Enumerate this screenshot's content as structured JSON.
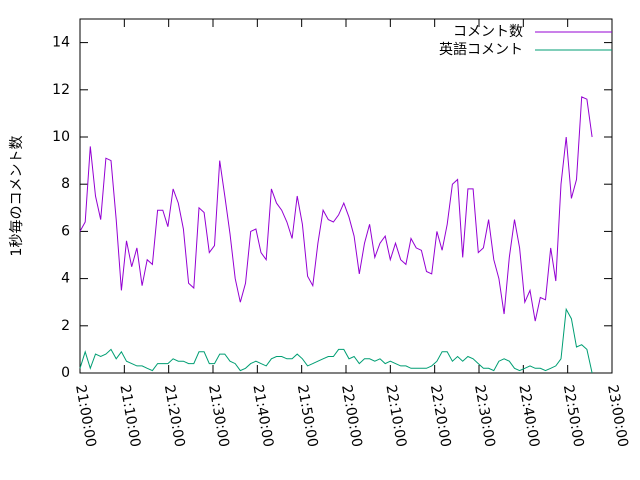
{
  "chart_data": {
    "type": "line",
    "ylabel": "1秒毎のコメント数",
    "x": [
      "21:00:00",
      "21:01:10",
      "21:02:20",
      "21:03:30",
      "21:04:40",
      "21:05:50",
      "21:07:00",
      "21:08:10",
      "21:09:20",
      "21:10:30",
      "21:11:40",
      "21:12:50",
      "21:14:00",
      "21:15:10",
      "21:16:20",
      "21:17:30",
      "21:18:40",
      "21:19:50",
      "21:21:00",
      "21:22:10",
      "21:23:20",
      "21:24:30",
      "21:25:40",
      "21:26:50",
      "21:28:00",
      "21:29:10",
      "21:30:20",
      "21:31:30",
      "21:32:40",
      "21:33:50",
      "21:35:00",
      "21:36:10",
      "21:37:20",
      "21:38:30",
      "21:39:40",
      "21:40:50",
      "21:42:00",
      "21:43:10",
      "21:44:20",
      "21:45:30",
      "21:46:40",
      "21:47:50",
      "21:49:00",
      "21:50:10",
      "21:51:20",
      "21:52:30",
      "21:53:40",
      "21:54:50",
      "21:56:00",
      "21:57:10",
      "21:58:20",
      "21:59:30",
      "22:00:40",
      "22:01:50",
      "22:03:00",
      "22:04:10",
      "22:05:20",
      "22:06:30",
      "22:07:40",
      "22:08:50",
      "22:10:00",
      "22:11:10",
      "22:12:20",
      "22:13:30",
      "22:14:40",
      "22:15:50",
      "22:17:00",
      "22:18:10",
      "22:19:20",
      "22:20:30",
      "22:21:40",
      "22:22:50",
      "22:24:00",
      "22:25:10",
      "22:26:20",
      "22:27:30",
      "22:28:40",
      "22:29:50",
      "22:31:00",
      "22:32:10",
      "22:33:20",
      "22:34:30",
      "22:35:40",
      "22:36:50",
      "22:38:00",
      "22:39:10",
      "22:40:20",
      "22:41:30",
      "22:42:40",
      "22:43:50",
      "22:45:00",
      "22:46:10",
      "22:47:20",
      "22:48:30",
      "22:49:40",
      "22:50:50",
      "22:52:00",
      "22:53:10",
      "22:54:20",
      "22:55:30"
    ],
    "series": [
      {
        "name": "コメント数",
        "color": "#9400d3",
        "values": [
          6.0,
          6.4,
          9.6,
          7.5,
          6.5,
          9.1,
          9.0,
          6.5,
          3.5,
          5.6,
          4.5,
          5.3,
          3.7,
          4.8,
          4.6,
          6.9,
          6.9,
          6.2,
          7.8,
          7.2,
          6.1,
          3.8,
          3.6,
          7.0,
          6.8,
          5.1,
          5.4,
          9.0,
          7.5,
          5.9,
          4.0,
          3.0,
          3.8,
          6.0,
          6.1,
          5.1,
          4.8,
          7.8,
          7.2,
          6.9,
          6.4,
          5.7,
          7.5,
          6.3,
          4.1,
          3.7,
          5.5,
          6.9,
          6.5,
          6.4,
          6.7,
          7.2,
          6.6,
          5.8,
          4.2,
          5.5,
          6.3,
          4.9,
          5.5,
          5.8,
          4.8,
          5.5,
          4.8,
          4.6,
          5.7,
          5.3,
          5.2,
          4.3,
          4.2,
          6.0,
          5.2,
          6.3,
          8.0,
          8.2,
          4.9,
          7.8,
          7.8,
          5.1,
          5.3,
          6.5,
          4.8,
          4.0,
          2.5,
          4.9,
          6.5,
          5.3,
          3.0,
          3.5,
          2.2,
          3.2,
          3.1,
          5.3,
          3.9,
          8.0,
          10.0,
          7.4,
          8.2,
          11.7,
          11.6,
          10.0
        ]
      },
      {
        "name": "英語コメント",
        "color": "#009e73",
        "values": [
          0.2,
          0.9,
          0.2,
          0.8,
          0.7,
          0.8,
          1.0,
          0.6,
          0.9,
          0.5,
          0.4,
          0.3,
          0.3,
          0.2,
          0.1,
          0.4,
          0.4,
          0.4,
          0.6,
          0.5,
          0.5,
          0.4,
          0.4,
          0.9,
          0.9,
          0.4,
          0.4,
          0.8,
          0.8,
          0.5,
          0.4,
          0.1,
          0.2,
          0.4,
          0.5,
          0.4,
          0.3,
          0.6,
          0.7,
          0.7,
          0.6,
          0.6,
          0.8,
          0.6,
          0.3,
          0.4,
          0.5,
          0.6,
          0.7,
          0.7,
          1.0,
          1.0,
          0.6,
          0.7,
          0.4,
          0.6,
          0.6,
          0.5,
          0.6,
          0.4,
          0.5,
          0.4,
          0.3,
          0.3,
          0.2,
          0.2,
          0.2,
          0.2,
          0.3,
          0.5,
          0.9,
          0.9,
          0.5,
          0.7,
          0.5,
          0.7,
          0.6,
          0.4,
          0.2,
          0.2,
          0.1,
          0.5,
          0.6,
          0.5,
          0.2,
          0.1,
          0.2,
          0.3,
          0.2,
          0.2,
          0.1,
          0.2,
          0.3,
          0.6,
          2.7,
          2.3,
          1.1,
          1.2,
          1.0,
          0.0
        ]
      }
    ],
    "xlim": [
      "21:00:00",
      "23:00:00"
    ],
    "xticks": [
      "21:00:00",
      "21:10:00",
      "21:20:00",
      "21:30:00",
      "21:40:00",
      "21:50:00",
      "22:00:00",
      "22:10:00",
      "22:20:00",
      "22:30:00",
      "22:40:00",
      "22:50:00",
      "23:00:00"
    ],
    "ylim": [
      0,
      15
    ],
    "yticks": [
      0,
      2,
      4,
      6,
      8,
      10,
      12,
      14
    ],
    "legend": "top-right"
  }
}
